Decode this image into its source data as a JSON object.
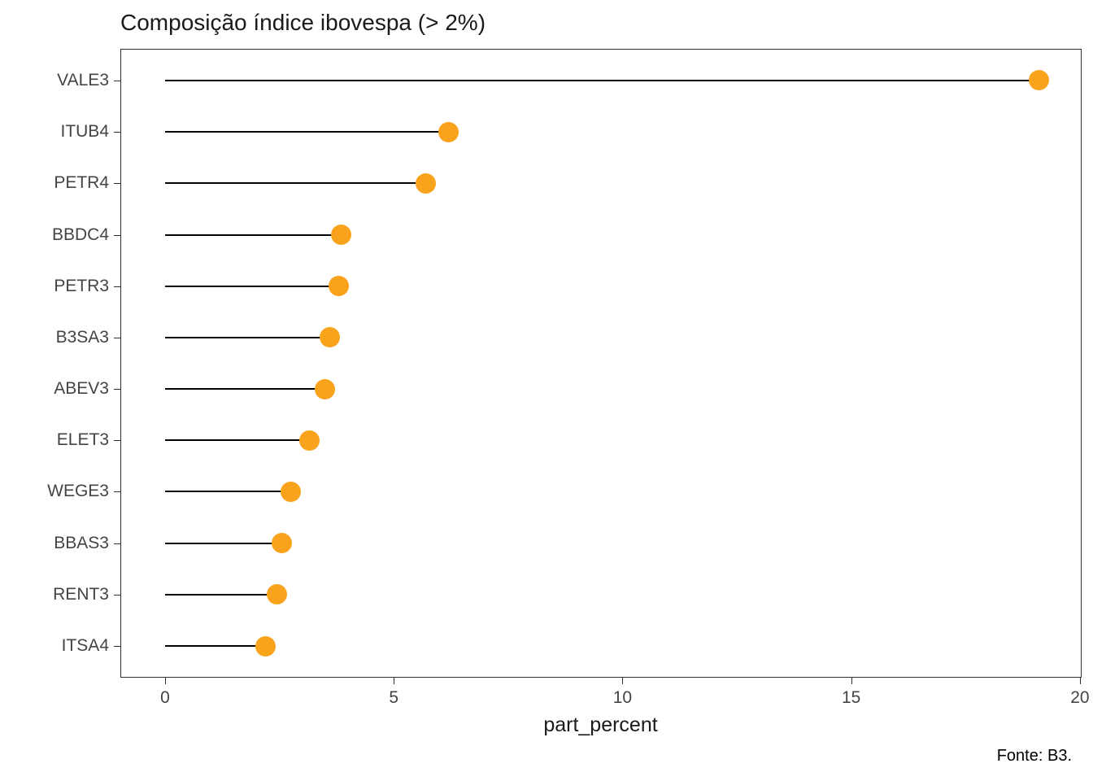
{
  "title": "Composição índice ibovespa (> 2%)",
  "footer": "Fonte: B3.",
  "chart_data": {
    "type": "lollipop",
    "title": "Composição índice ibovespa (> 2%)",
    "xlabel": "part_percent",
    "ylabel": "",
    "categories": [
      "VALE3",
      "ITUB4",
      "PETR4",
      "BBDC4",
      "PETR3",
      "B3SA3",
      "ABEV3",
      "ELET3",
      "WEGE3",
      "BBAS3",
      "RENT3",
      "ITSA4"
    ],
    "values": [
      19.1,
      6.2,
      5.7,
      3.85,
      3.8,
      3.6,
      3.5,
      3.15,
      2.75,
      2.55,
      2.45,
      2.2
    ],
    "xticks": [
      0,
      5,
      10,
      15,
      20
    ],
    "xlim": [
      -0.96,
      20.02
    ],
    "grid": false,
    "legend": "none",
    "dot_color": "#f9a21b",
    "stem_color": "#000000",
    "panel_border_color": "#2f2f2f",
    "source_note": "Fonte: B3."
  }
}
